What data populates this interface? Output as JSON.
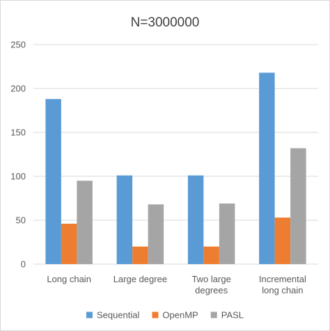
{
  "chart_data": {
    "type": "bar",
    "title": "N=3000000",
    "categories": [
      [
        "Long chain"
      ],
      [
        "Large degree"
      ],
      [
        "Two large",
        "degrees"
      ],
      [
        "Incremental",
        "long chain"
      ]
    ],
    "series": [
      {
        "name": "Sequential",
        "color": "#5b9bd5",
        "values": [
          188,
          101,
          101,
          218
        ]
      },
      {
        "name": "OpenMP",
        "color": "#ed7d31",
        "values": [
          46,
          20,
          20,
          53
        ]
      },
      {
        "name": "PASL",
        "color": "#a5a5a5",
        "values": [
          95,
          68,
          69,
          132
        ]
      }
    ],
    "yticks": [
      0,
      50,
      100,
      150,
      200,
      250
    ],
    "ylim": [
      0,
      250
    ],
    "grid": true,
    "legend": "bottom-center",
    "gridline_color": "#d9d9d9"
  }
}
